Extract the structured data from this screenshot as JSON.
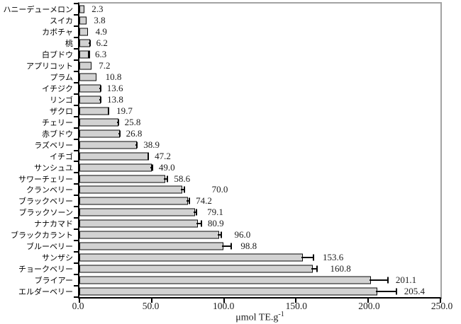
{
  "chart_data": {
    "type": "bar",
    "orientation": "horizontal",
    "title": "",
    "xlabel_base": "μmol TE.g",
    "xlabel_exponent": "-1",
    "xlabel_full": "μmol TE.g⁻¹",
    "xlim": [
      0,
      250
    ],
    "xticks": [
      "0.0",
      "50.0",
      "100.0",
      "150.0",
      "200.0",
      "250.0"
    ],
    "xtick_values": [
      0,
      50,
      100,
      150,
      200,
      250
    ],
    "grid": false,
    "legend": null,
    "bar_fill_color": "#d2d2d2",
    "bar_border_color": "#0a0a0a",
    "frame_color": "#a3a3a3",
    "axis_color": "#000000",
    "items": [
      {
        "label": "ハニーデューメロン",
        "value": 2.3,
        "error": 0.3,
        "value_label": "2.3",
        "label_gap": 12
      },
      {
        "label": "スイカ",
        "value": 3.8,
        "error": 0.3,
        "value_label": "3.8",
        "label_gap": 12
      },
      {
        "label": "カボチャ",
        "value": 4.9,
        "error": 0.3,
        "value_label": "4.9",
        "label_gap": 12
      },
      {
        "label": "桃",
        "value": 6.2,
        "error": 1.5,
        "value_label": "6.2",
        "label_gap": 8
      },
      {
        "label": "白ブドウ",
        "value": 6.3,
        "error": 0.6,
        "value_label": "6.3",
        "label_gap": 8
      },
      {
        "label": "アプリコット",
        "value": 7.2,
        "error": 0.3,
        "value_label": "7.2",
        "label_gap": 12
      },
      {
        "label": "プラム",
        "value": 10.8,
        "error": 0.3,
        "value_label": "10.8",
        "label_gap": 14
      },
      {
        "label": "イチジク",
        "value": 13.6,
        "error": 1.5,
        "value_label": "13.6",
        "label_gap": 8
      },
      {
        "label": "リンゴ",
        "value": 13.8,
        "error": 1.5,
        "value_label": "13.8",
        "label_gap": 8
      },
      {
        "label": "ザクロ",
        "value": 19.7,
        "error": 1.0,
        "value_label": "19.7",
        "label_gap": 10
      },
      {
        "label": "チェリー",
        "value": 25.8,
        "error": 1.5,
        "value_label": "25.8",
        "label_gap": 8
      },
      {
        "label": "赤ブドウ",
        "value": 26.8,
        "error": 1.5,
        "value_label": "26.8",
        "label_gap": 8
      },
      {
        "label": "ラズベリー",
        "value": 38.9,
        "error": 1.5,
        "value_label": "38.9",
        "label_gap": 8
      },
      {
        "label": "イチゴ",
        "value": 47.2,
        "error": 1.0,
        "value_label": "47.2",
        "label_gap": 8
      },
      {
        "label": "サンシュユ",
        "value": 49.0,
        "error": 2.0,
        "value_label": "49.0",
        "label_gap": 8
      },
      {
        "label": "サワーチェリー",
        "value": 58.6,
        "error": 3.0,
        "value_label": "58.6",
        "label_gap": 8
      },
      {
        "label": "クランベリー",
        "value": 70.0,
        "error": 3.0,
        "value_label": "70.0",
        "label_gap": 38
      },
      {
        "label": "ブラックベリー",
        "value": 74.2,
        "error": 2.5,
        "value_label": "74.2",
        "label_gap": 8
      },
      {
        "label": "ブラックソーン",
        "value": 79.1,
        "error": 2.5,
        "value_label": "79.1",
        "label_gap": 14
      },
      {
        "label": "ナナカマド",
        "value": 80.9,
        "error": 4.0,
        "value_label": "80.9",
        "label_gap": 8
      },
      {
        "label": "ブラックカラント",
        "value": 96.0,
        "error": 2.5,
        "value_label": "96.0",
        "label_gap": 18
      },
      {
        "label": "ブルーベリー",
        "value": 98.8,
        "error": 7.0,
        "value_label": "98.8",
        "label_gap": 12
      },
      {
        "label": "サンザシ",
        "value": 153.6,
        "error": 9.0,
        "value_label": "153.6",
        "label_gap": 12
      },
      {
        "label": "チョークベリー",
        "value": 160.8,
        "error": 4.0,
        "value_label": "160.8",
        "label_gap": 18
      },
      {
        "label": "ブライアー",
        "value": 201.1,
        "error": 13.0,
        "value_label": "201.1",
        "label_gap": 10
      },
      {
        "label": "エルダーベリー",
        "value": 205.4,
        "error": 14.5,
        "value_label": "205.4",
        "label_gap": 10
      }
    ]
  }
}
